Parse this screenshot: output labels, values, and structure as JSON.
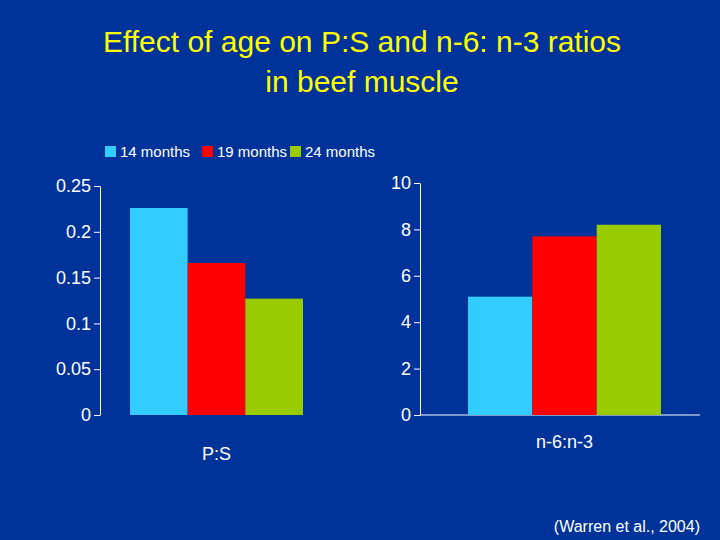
{
  "chart_data": [
    {
      "type": "bar",
      "title": "Effect of age on P:S and n-6: n-3 ratios\nin beef muscle",
      "annotation": "(Warren et al., 2004)",
      "categories": [
        "P:S"
      ],
      "series": [
        {
          "name": "14 months",
          "color": "#33ccff",
          "values": [
            0.226
          ]
        },
        {
          "name": "19 months",
          "color": "#ff0000",
          "values": [
            0.166
          ]
        },
        {
          "name": "24 months",
          "color": "#99cc00",
          "values": [
            0.127
          ]
        }
      ],
      "ylim": [
        0,
        0.25
      ],
      "yticks": [
        0,
        0.05,
        0.1,
        0.15,
        0.2,
        0.25
      ]
    },
    {
      "type": "bar",
      "categories": [
        "n-6:n-3"
      ],
      "series": [
        {
          "color": "#33ccff",
          "values": [
            5.1
          ]
        },
        {
          "color": "#ff0000",
          "values": [
            7.7
          ]
        },
        {
          "color": "#99cc00",
          "values": [
            8.2
          ]
        }
      ],
      "ylim": [
        0,
        10
      ],
      "yticks": [
        0,
        2,
        4,
        6,
        8,
        10
      ]
    }
  ]
}
